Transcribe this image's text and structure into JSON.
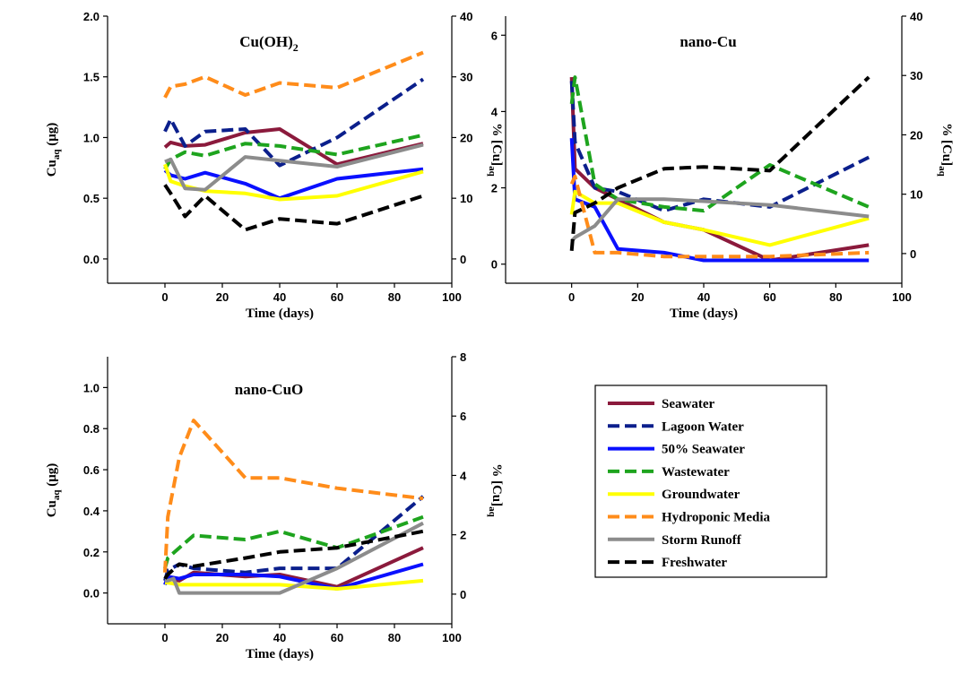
{
  "series_styles": [
    {
      "name": "Seawater",
      "color": "#8b1a3c",
      "dashed": false
    },
    {
      "name": "Lagoon Water",
      "color": "#0b1f8c",
      "dashed": true
    },
    {
      "name": "50% Seawater",
      "color": "#0a10ff",
      "dashed": false
    },
    {
      "name": "Wastewater",
      "color": "#1ea41e",
      "dashed": true
    },
    {
      "name": "Groundwater",
      "color": "#ffff00",
      "dashed": false
    },
    {
      "name": "Hydroponic Media",
      "color": "#ff8c1a",
      "dashed": true
    },
    {
      "name": "Storm Runoff",
      "color": "#8c8c8c",
      "dashed": false
    },
    {
      "name": "Freshwater",
      "color": "#000000",
      "dashed": true
    }
  ],
  "chart_data": [
    {
      "type": "line",
      "title": "Cu(OH)",
      "title_sub": "2",
      "xlabel": "Time (days)",
      "ylabel_main": "Cu",
      "ylabel_sub": "aq",
      "ylabel_unit": " (μg)",
      "y2label_main": "% [Cu]",
      "y2label_sub": "aq",
      "xlim": [
        -20,
        100
      ],
      "xticks": [
        "0",
        "20",
        "40",
        "60",
        "80",
        "100"
      ],
      "ylim": [
        -0.2,
        2.0
      ],
      "yticks": [
        "0.0",
        "0.5",
        "1.0",
        "1.5",
        "2.0"
      ],
      "y2lim": [
        -4,
        40
      ],
      "y2ticks": [
        "0",
        "10",
        "20",
        "30",
        "40"
      ],
      "series": [
        {
          "name": "Seawater",
          "x": [
            0,
            2,
            7,
            14,
            28,
            40,
            60,
            90
          ],
          "y": [
            0.92,
            0.96,
            0.93,
            0.94,
            1.04,
            1.07,
            0.78,
            0.95
          ]
        },
        {
          "name": "Lagoon Water",
          "x": [
            0,
            2,
            7,
            14,
            28,
            40,
            60,
            90
          ],
          "y": [
            1.05,
            1.15,
            0.93,
            1.05,
            1.07,
            0.77,
            1.0,
            1.48
          ]
        },
        {
          "name": "50% Seawater",
          "x": [
            0,
            2,
            7,
            14,
            28,
            40,
            60,
            90
          ],
          "y": [
            0.73,
            0.69,
            0.66,
            0.71,
            0.62,
            0.5,
            0.66,
            0.74
          ]
        },
        {
          "name": "Wastewater",
          "x": [
            0,
            2,
            7,
            14,
            28,
            40,
            60,
            90
          ],
          "y": [
            0.74,
            0.82,
            0.88,
            0.85,
            0.95,
            0.93,
            0.86,
            1.02
          ]
        },
        {
          "name": "Groundwater",
          "x": [
            0,
            2,
            7,
            14,
            28,
            40,
            60,
            90
          ],
          "y": [
            0.78,
            0.64,
            0.6,
            0.56,
            0.54,
            0.49,
            0.52,
            0.72
          ]
        },
        {
          "name": "Hydroponic Media",
          "x": [
            0,
            2,
            7,
            14,
            28,
            40,
            60,
            90
          ],
          "y": [
            1.33,
            1.42,
            1.44,
            1.5,
            1.35,
            1.45,
            1.41,
            1.7
          ]
        },
        {
          "name": "Storm Runoff",
          "x": [
            0,
            2,
            7,
            14,
            28,
            40,
            60,
            90
          ],
          "y": [
            0.8,
            0.82,
            0.58,
            0.57,
            0.84,
            0.81,
            0.76,
            0.94
          ]
        },
        {
          "name": "Freshwater",
          "x": [
            0,
            2,
            7,
            14,
            28,
            40,
            60,
            90
          ],
          "y": [
            0.61,
            0.54,
            0.35,
            0.52,
            0.24,
            0.33,
            0.29,
            0.52
          ]
        }
      ]
    },
    {
      "type": "line",
      "title": "nano-Cu",
      "title_sub": "",
      "xlabel": "Time (days)",
      "ylabel_main": "",
      "ylabel_sub": "",
      "ylabel_unit": "",
      "y2label_main": "% [Cu]",
      "y2label_sub": "aq",
      "xlim": [
        -20,
        100
      ],
      "xticks": [
        "0",
        "20",
        "40",
        "60",
        "80",
        "100"
      ],
      "ylim": [
        -0.5,
        6.5
      ],
      "yticks": [
        "0",
        "2",
        "4",
        "6"
      ],
      "y2lim": [
        -5,
        40
      ],
      "y2ticks": [
        "0",
        "10",
        "20",
        "30",
        "40"
      ],
      "series": [
        {
          "name": "Seawater",
          "x": [
            0,
            1,
            7,
            14,
            28,
            40,
            60,
            90
          ],
          "y": [
            4.9,
            2.5,
            2.0,
            1.7,
            1.1,
            0.9,
            0.1,
            0.5
          ]
        },
        {
          "name": "Lagoon Water",
          "x": [
            0,
            1,
            7,
            14,
            28,
            40,
            60,
            90
          ],
          "y": [
            4.8,
            3.2,
            2.0,
            1.9,
            1.4,
            1.7,
            1.5,
            2.8
          ]
        },
        {
          "name": "50% Seawater",
          "x": [
            0,
            1,
            7,
            14,
            28,
            40,
            60,
            90
          ],
          "y": [
            3.3,
            1.7,
            1.5,
            0.4,
            0.3,
            0.1,
            0.1,
            0.1
          ]
        },
        {
          "name": "Wastewater",
          "x": [
            0,
            1,
            7,
            14,
            28,
            40,
            60,
            90
          ],
          "y": [
            4.2,
            4.9,
            2.1,
            1.7,
            1.5,
            1.4,
            2.6,
            1.5
          ]
        },
        {
          "name": "Groundwater",
          "x": [
            0,
            1,
            7,
            14,
            28,
            40,
            60,
            90
          ],
          "y": [
            1.3,
            1.9,
            1.6,
            1.6,
            1.1,
            0.9,
            0.5,
            1.2
          ]
        },
        {
          "name": "Hydroponic Media",
          "x": [
            0,
            1,
            7,
            14,
            28,
            40,
            60,
            90
          ],
          "y": [
            2.1,
            2.3,
            0.3,
            0.3,
            0.2,
            0.2,
            0.2,
            0.3
          ]
        },
        {
          "name": "Storm Runoff",
          "x": [
            0,
            1,
            7,
            14,
            28,
            40,
            60,
            90
          ],
          "y": [
            0.6,
            0.7,
            1.0,
            1.7,
            1.7,
            1.65,
            1.55,
            1.25
          ]
        },
        {
          "name": "Freshwater",
          "x": [
            0,
            1,
            7,
            14,
            28,
            40,
            60,
            90
          ],
          "y": [
            0.35,
            1.35,
            1.6,
            2.0,
            2.5,
            2.55,
            2.45,
            4.9
          ]
        }
      ]
    },
    {
      "type": "line",
      "title": "nano-CuO",
      "title_sub": "",
      "xlabel": "Time (days)",
      "ylabel_main": "Cu",
      "ylabel_sub": "aq",
      "ylabel_unit": " (μg)",
      "y2label_main": "% [Cu]",
      "y2label_sub": "aq",
      "xlim": [
        -20,
        100
      ],
      "xticks": [
        "0",
        "20",
        "40",
        "60",
        "80",
        "100"
      ],
      "ylim": [
        -0.15,
        1.15
      ],
      "yticks": [
        "0.0",
        "0.2",
        "0.4",
        "0.6",
        "0.8",
        "1.0"
      ],
      "y2lim": [
        -1,
        8
      ],
      "y2ticks": [
        "0",
        "2",
        "4",
        "6",
        "8"
      ],
      "series": [
        {
          "name": "Seawater",
          "x": [
            0,
            1,
            5,
            10,
            28,
            40,
            60,
            90
          ],
          "y": [
            0.07,
            0.07,
            0.06,
            0.1,
            0.08,
            0.09,
            0.03,
            0.22
          ]
        },
        {
          "name": "Lagoon Water",
          "x": [
            0,
            1,
            5,
            10,
            28,
            40,
            60,
            90
          ],
          "y": [
            0.06,
            0.11,
            0.14,
            0.12,
            0.1,
            0.12,
            0.12,
            0.47
          ]
        },
        {
          "name": "50% Seawater",
          "x": [
            0,
            1,
            5,
            10,
            28,
            40,
            60,
            90
          ],
          "y": [
            0.04,
            0.08,
            0.07,
            0.09,
            0.09,
            0.08,
            0.02,
            0.14
          ]
        },
        {
          "name": "Wastewater",
          "x": [
            0,
            1,
            5,
            10,
            28,
            40,
            60,
            90
          ],
          "y": [
            0.12,
            0.17,
            0.22,
            0.28,
            0.26,
            0.3,
            0.22,
            0.37
          ]
        },
        {
          "name": "Groundwater",
          "x": [
            0,
            1,
            5,
            10,
            28,
            40,
            60,
            90
          ],
          "y": [
            0.05,
            0.05,
            0.04,
            0.04,
            0.04,
            0.04,
            0.02,
            0.06
          ]
        },
        {
          "name": "Hydroponic Media",
          "x": [
            0,
            1,
            5,
            10,
            28,
            40,
            60,
            90
          ],
          "y": [
            0.1,
            0.37,
            0.66,
            0.84,
            0.56,
            0.56,
            0.51,
            0.46
          ]
        },
        {
          "name": "Storm Runoff",
          "x": [
            0,
            1,
            3,
            5,
            10,
            28,
            40,
            60,
            90
          ],
          "y": [
            0.06,
            0.06,
            0.07,
            0.0,
            0.0,
            0.0,
            0.0,
            0.12,
            0.34
          ]
        },
        {
          "name": "Freshwater",
          "x": [
            0,
            1,
            5,
            10,
            28,
            40,
            60,
            90
          ],
          "y": [
            0.07,
            0.09,
            0.14,
            0.13,
            0.17,
            0.2,
            0.22,
            0.3
          ]
        }
      ]
    }
  ],
  "legend": {
    "placement": "bottom-right",
    "items": [
      "Seawater",
      "Lagoon Water",
      "50% Seawater",
      "Wastewater",
      "Groundwater",
      "Hydroponic Media",
      "Storm Runoff",
      "Freshwater"
    ]
  }
}
